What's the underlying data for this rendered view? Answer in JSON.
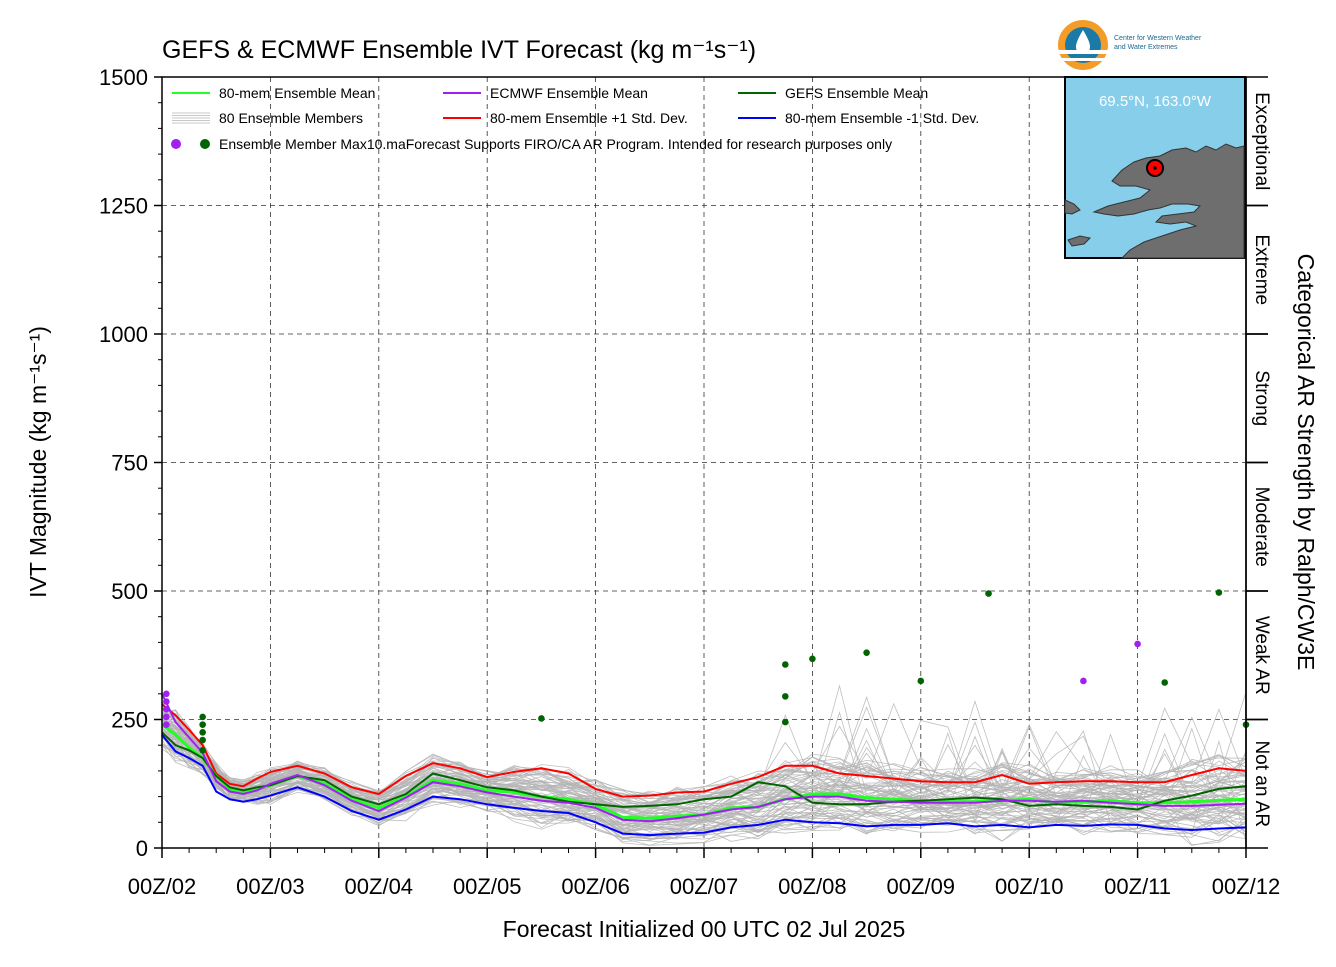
{
  "chart_data": {
    "type": "line",
    "title": "GEFS & ECMWF Ensemble IVT Forecast (kg m⁻¹s⁻¹)",
    "ylabel": "IVT Magnitude (kg m⁻¹s⁻¹)",
    "xlabel": "Forecast Initialized 00 UTC 02 Jul 2025",
    "right_label": "Categorical AR Strength by Ralph/CW3E",
    "ylim": [
      0,
      1500
    ],
    "yticks": [
      "0",
      "250",
      "500",
      "750",
      "1000",
      "1250",
      "1500"
    ],
    "xlim_days": [
      0,
      10
    ],
    "xtick_labels": [
      "00Z/02",
      "00Z/03",
      "00Z/04",
      "00Z/05",
      "00Z/06",
      "00Z/07",
      "00Z/08",
      "00Z/09",
      "00Z/10",
      "00Z/11",
      "00Z/12"
    ],
    "grid": true,
    "legend_placement": "top-left",
    "categories_ar": [
      {
        "label": "Not an AR",
        "range": [
          0,
          250
        ]
      },
      {
        "label": "Weak AR",
        "range": [
          250,
          500
        ]
      },
      {
        "label": "Moderate",
        "range": [
          500,
          750
        ]
      },
      {
        "label": "Strong",
        "range": [
          750,
          1000
        ]
      },
      {
        "label": "Extreme",
        "range": [
          1000,
          1250
        ]
      },
      {
        "label": "Exceptional",
        "range": [
          1250,
          1500
        ]
      }
    ],
    "legend": [
      {
        "label": "80-mem Ensemble Mean",
        "color": "#22ff22",
        "kind": "line"
      },
      {
        "label": "ECMWF Ensemble Mean",
        "color": "#a020f0",
        "kind": "line"
      },
      {
        "label": "GEFS Ensemble Mean",
        "color": "#006400",
        "kind": "line"
      },
      {
        "label": "80 Ensemble Members",
        "color": "#b4b4b4",
        "kind": "members"
      },
      {
        "label": "80-mem Ensemble +1 Std. Dev.",
        "color": "#ff0000",
        "kind": "line"
      },
      {
        "label": "80-mem Ensemble -1 Std. Dev.",
        "color": "#0000ff",
        "kind": "line"
      }
    ],
    "legend_marker_text": "Ensemble Member Max10.maForecast Supports FIRO/CA AR Program. Intended for research purposes only",
    "x_days": [
      0,
      0.125,
      0.25,
      0.375,
      0.5,
      0.625,
      0.75,
      0.875,
      1,
      1.25,
      1.5,
      1.75,
      2,
      2.25,
      2.5,
      2.75,
      3,
      3.25,
      3.5,
      3.75,
      4,
      4.25,
      4.5,
      4.75,
      5,
      5.25,
      5.5,
      5.75,
      6,
      6.25,
      6.5,
      6.75,
      7,
      7.25,
      7.5,
      7.75,
      8,
      8.25,
      8.5,
      8.75,
      9,
      9.25,
      9.5,
      9.75,
      10
    ],
    "series": [
      {
        "name": "80-mem Ensemble Mean",
        "color": "#22ff22",
        "values": [
          240,
          220,
          195,
          175,
          140,
          115,
          110,
          115,
          122,
          140,
          125,
          95,
          78,
          100,
          132,
          125,
          112,
          108,
          100,
          95,
          84,
          60,
          58,
          62,
          65,
          78,
          80,
          95,
          105,
          105,
          98,
          95,
          92,
          90,
          90,
          92,
          95,
          88,
          90,
          92,
          88,
          88,
          90,
          93,
          95
        ]
      },
      {
        "name": "ECMWF Ensemble Mean",
        "color": "#a020f0",
        "values": [
          300,
          245,
          215,
          185,
          130,
          110,
          105,
          112,
          125,
          142,
          122,
          92,
          72,
          98,
          128,
          120,
          108,
          100,
          92,
          88,
          78,
          55,
          52,
          58,
          65,
          75,
          80,
          95,
          100,
          100,
          92,
          90,
          88,
          88,
          88,
          92,
          92,
          90,
          92,
          88,
          85,
          82,
          82,
          84,
          86
        ]
      },
      {
        "name": "GEFS Ensemble Mean",
        "color": "#006400",
        "values": [
          225,
          200,
          190,
          175,
          140,
          118,
          112,
          118,
          122,
          140,
          132,
          100,
          85,
          105,
          145,
          132,
          118,
          112,
          100,
          90,
          85,
          80,
          82,
          85,
          95,
          100,
          128,
          120,
          88,
          85,
          85,
          90,
          92,
          95,
          98,
          95,
          82,
          85,
          82,
          80,
          75,
          92,
          102,
          115,
          120
        ]
      },
      {
        "name": "80-mem Ensemble +1 Std. Dev.",
        "color": "#ff0000",
        "values": [
          280,
          258,
          230,
          200,
          145,
          125,
          120,
          135,
          148,
          160,
          145,
          118,
          105,
          140,
          165,
          155,
          138,
          148,
          155,
          145,
          115,
          100,
          102,
          108,
          110,
          125,
          138,
          160,
          160,
          145,
          140,
          135,
          130,
          128,
          128,
          142,
          125,
          128,
          130,
          130,
          128,
          128,
          142,
          155,
          150
        ]
      },
      {
        "name": "80-mem Ensemble -1 Std. Dev.",
        "color": "#0000ff",
        "values": [
          220,
          188,
          175,
          160,
          110,
          95,
          90,
          95,
          102,
          118,
          100,
          72,
          55,
          75,
          100,
          95,
          85,
          78,
          72,
          68,
          50,
          28,
          25,
          28,
          30,
          40,
          45,
          55,
          50,
          48,
          42,
          45,
          45,
          48,
          42,
          45,
          40,
          45,
          43,
          46,
          45,
          38,
          35,
          38,
          40
        ]
      }
    ],
    "member_max_markers": [
      {
        "day": 0.04,
        "value": 300,
        "model": "ECMWF"
      },
      {
        "day": 0.04,
        "value": 285,
        "model": "ECMWF"
      },
      {
        "day": 0.04,
        "value": 270,
        "model": "ECMWF"
      },
      {
        "day": 0.04,
        "value": 255,
        "model": "ECMWF"
      },
      {
        "day": 0.04,
        "value": 240,
        "model": "ECMWF"
      },
      {
        "day": 0.375,
        "value": 255,
        "model": "GEFS"
      },
      {
        "day": 0.375,
        "value": 240,
        "model": "GEFS"
      },
      {
        "day": 0.375,
        "value": 225,
        "model": "GEFS"
      },
      {
        "day": 0.375,
        "value": 210,
        "model": "GEFS"
      },
      {
        "day": 0.375,
        "value": 190,
        "model": "GEFS"
      },
      {
        "day": 3.5,
        "value": 252,
        "model": "GEFS"
      },
      {
        "day": 5.75,
        "value": 357,
        "model": "GEFS"
      },
      {
        "day": 5.75,
        "value": 295,
        "model": "GEFS"
      },
      {
        "day": 5.75,
        "value": 245,
        "model": "GEFS"
      },
      {
        "day": 6.0,
        "value": 368,
        "model": "GEFS"
      },
      {
        "day": 6.5,
        "value": 380,
        "model": "GEFS"
      },
      {
        "day": 7.0,
        "value": 325,
        "model": "GEFS"
      },
      {
        "day": 7.625,
        "value": 495,
        "model": "GEFS"
      },
      {
        "day": 8.5,
        "value": 325,
        "model": "ECMWF"
      },
      {
        "day": 9.0,
        "value": 397,
        "model": "ECMWF"
      },
      {
        "day": 9.25,
        "value": 322,
        "model": "GEFS"
      },
      {
        "day": 9.75,
        "value": 497,
        "model": "GEFS"
      },
      {
        "day": 10.0,
        "value": 240,
        "model": "GEFS"
      }
    ]
  },
  "inset": {
    "location": "69.5°N, 163.0°W",
    "ocean_color": "#87ceeb",
    "land_color": "#6e6e6e",
    "marker_color": "#ff0000"
  },
  "logo": {
    "text": "Center for Western Weather and Water Extremes",
    "line1": "Center for Western Weather",
    "line2": "and Water Extremes"
  },
  "colors": {
    "members": "#b4b4b4",
    "ecmwf_marker": "#a020f0",
    "gefs_marker": "#006400"
  }
}
